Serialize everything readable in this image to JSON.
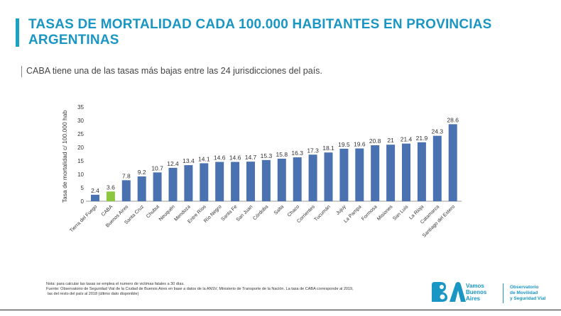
{
  "header": {
    "title": "TASAS DE MORTALIDAD CADA 100.000 HABITANTES EN PROVINCIAS ARGENTINAS",
    "subtitle": "CABA tiene una de las tasas más bajas entre las 24 jurisdicciones del país."
  },
  "chart_data": {
    "type": "bar",
    "title": "",
    "xlabel": "",
    "ylabel": "Tasa de mortalidad c/ 100.000 hab",
    "ylim": [
      0,
      35
    ],
    "yticks": [
      0,
      5,
      10,
      15,
      20,
      25,
      30,
      35
    ],
    "grid": false,
    "colors": {
      "default": "#4a72b0",
      "highlight": "#8dc63f"
    },
    "highlight_category": "CABA",
    "categories": [
      "Tierra del Fuego",
      "CABA",
      "Buenos Aires",
      "Santa Cruz",
      "Chubut",
      "Neuquén",
      "Mendoza",
      "Entre Ríos",
      "Río Negro",
      "Santa Fe",
      "San Juan",
      "Córdoba",
      "Salta",
      "Chaco",
      "Corrientes",
      "Tucumán",
      "Jujuy",
      "La Pampa",
      "Formosa",
      "Misiones",
      "San Luis",
      "La Rioja",
      "Catamarca",
      "Santiago del Estero"
    ],
    "values": [
      2.4,
      3.6,
      7.8,
      9.2,
      10.7,
      12.4,
      13.4,
      14.1,
      14.6,
      14.6,
      14.7,
      15.3,
      15.8,
      16.3,
      17.3,
      18.1,
      19.5,
      19.6,
      20.8,
      21,
      21.4,
      21.9,
      24.3,
      28.6
    ],
    "value_labels": [
      "2.4",
      "3.6",
      "7.8",
      "9.2",
      "10.7",
      "12.4",
      "13.4",
      "14.1",
      "14.6",
      "14.6",
      "14.7",
      "15.3",
      "15.8",
      "16.3",
      "17.3",
      "18.1",
      "19.5",
      "19.6",
      "20.8",
      "21",
      "21.4",
      "21.9",
      "24.3",
      "28.6"
    ]
  },
  "notes": {
    "line1": "Nota: para calcular las tasas se emplea el numero de victimas fatales a 30 días.",
    "line2": "Fuente: Observatorio de Seguridad Vial de la Ciudad de Buenos Aires en base a datos de la ANSV, Ministerio de Transporte de la Nación. La tasa de CABA corresponde al 2019,",
    "line3": "las del resto del país al 2018 (último dato disponible)"
  },
  "logo": {
    "line1": "Vamos",
    "line2": "Buenos",
    "line3": "Aires",
    "obs1": "Observatorio",
    "obs2": "de Movilidad",
    "obs3": "y Seguridad Vial",
    "color": "#1a96c4"
  }
}
